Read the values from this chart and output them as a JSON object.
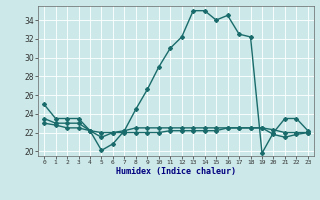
{
  "title": "",
  "xlabel": "Humidex (Indice chaleur)",
  "x_values": [
    0,
    1,
    2,
    3,
    4,
    5,
    6,
    7,
    8,
    9,
    10,
    11,
    12,
    13,
    14,
    15,
    16,
    17,
    18,
    19,
    20,
    21,
    22,
    23
  ],
  "line1": [
    25.0,
    23.5,
    23.5,
    23.5,
    22.2,
    20.1,
    20.8,
    22.2,
    24.5,
    26.6,
    29.0,
    31.0,
    32.2,
    35.0,
    35.0,
    34.0,
    34.5,
    32.5,
    32.2,
    19.8,
    22.0,
    23.5,
    23.5,
    22.2
  ],
  "line2": [
    23.5,
    23.0,
    23.0,
    23.0,
    22.2,
    21.5,
    22.0,
    22.2,
    22.5,
    22.5,
    22.5,
    22.5,
    22.5,
    22.5,
    22.5,
    22.5,
    22.5,
    22.5,
    22.5,
    22.5,
    21.8,
    21.5,
    21.8,
    22.0
  ],
  "line3": [
    23.0,
    22.8,
    22.5,
    22.5,
    22.2,
    22.0,
    22.0,
    22.0,
    22.0,
    22.0,
    22.0,
    22.2,
    22.2,
    22.2,
    22.2,
    22.2,
    22.5,
    22.5,
    22.5,
    22.5,
    22.3,
    22.0,
    22.0,
    22.0
  ],
  "ylim": [
    19.5,
    35.5
  ],
  "yticks": [
    20,
    22,
    24,
    26,
    28,
    30,
    32,
    34
  ],
  "line_color": "#1a6b6b",
  "bg_color": "#cce8e8",
  "grid_color": "#ffffff",
  "marker": "D",
  "marker_size": 2.0,
  "line_width": 1.0
}
